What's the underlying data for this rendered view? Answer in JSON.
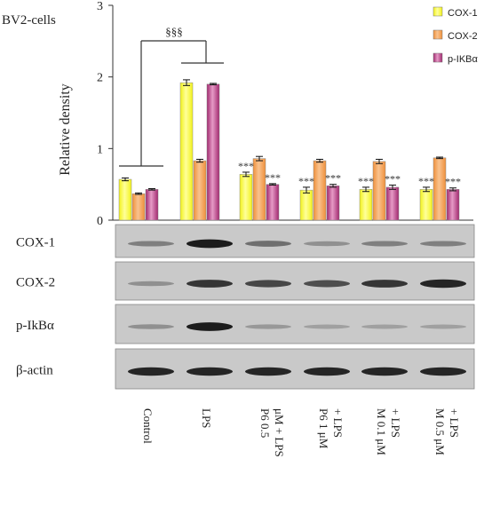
{
  "chart_data": {
    "type": "bar",
    "title": "BV2-cells",
    "ylabel": "Relative density",
    "ylim": [
      0,
      3
    ],
    "yticks": [
      "0",
      "1",
      "2",
      "3"
    ],
    "categories": [
      "Control",
      "LPS",
      "P6 0.5 μM + LPS",
      "P6 1 μM + LPS",
      "M 0.1 μM + LPS",
      "M 0.5 μM + LPS"
    ],
    "series": [
      {
        "name": "COX-1",
        "color": "#f2f21a",
        "values": [
          0.57,
          1.92,
          0.64,
          0.42,
          0.43,
          0.43
        ],
        "errors": [
          0.02,
          0.04,
          0.03,
          0.04,
          0.03,
          0.03
        ]
      },
      {
        "name": "COX-2",
        "color": "#f0903a",
        "values": [
          0.37,
          0.83,
          0.86,
          0.83,
          0.82,
          0.87
        ],
        "errors": [
          0.01,
          0.02,
          0.03,
          0.02,
          0.03,
          0.01
        ]
      },
      {
        "name": "p-IKBα",
        "color": "#a0286e",
        "values": [
          0.43,
          1.9,
          0.5,
          0.48,
          0.46,
          0.43
        ],
        "errors": [
          0.01,
          0.01,
          0.01,
          0.02,
          0.03,
          0.02
        ]
      }
    ],
    "significance_marks": [
      {
        "category": 2,
        "series": [
          0,
          2
        ],
        "label": "***"
      },
      {
        "category": 3,
        "series": [
          0,
          2
        ],
        "label": "***"
      },
      {
        "category": 4,
        "series": [
          0,
          2
        ],
        "label": "***"
      },
      {
        "category": 5,
        "series": [
          0,
          2
        ],
        "label": "***"
      }
    ],
    "bracket_label": "§§§",
    "legend_position": "top-right",
    "grid": false
  },
  "blots": [
    {
      "label": "COX-1",
      "intensity": [
        0.35,
        0.95,
        0.45,
        0.25,
        0.35,
        0.35
      ]
    },
    {
      "label": "COX-2",
      "intensity": [
        0.25,
        0.8,
        0.7,
        0.65,
        0.8,
        0.9
      ]
    },
    {
      "label": "p-IkBα",
      "intensity": [
        0.25,
        0.95,
        0.2,
        0.15,
        0.15,
        0.15
      ]
    },
    {
      "label": "β-actin",
      "intensity": [
        0.9,
        0.9,
        0.9,
        0.9,
        0.9,
        0.9
      ]
    }
  ],
  "lane_labels": [
    [
      "Control"
    ],
    [
      "LPS"
    ],
    [
      "P6  0.5",
      "μM + LPS"
    ],
    [
      "P6  1 μM",
      "+ LPS"
    ],
    [
      "M 0.1 μM",
      "+ LPS"
    ],
    [
      "M 0.5 μM",
      "+ LPS"
    ]
  ]
}
